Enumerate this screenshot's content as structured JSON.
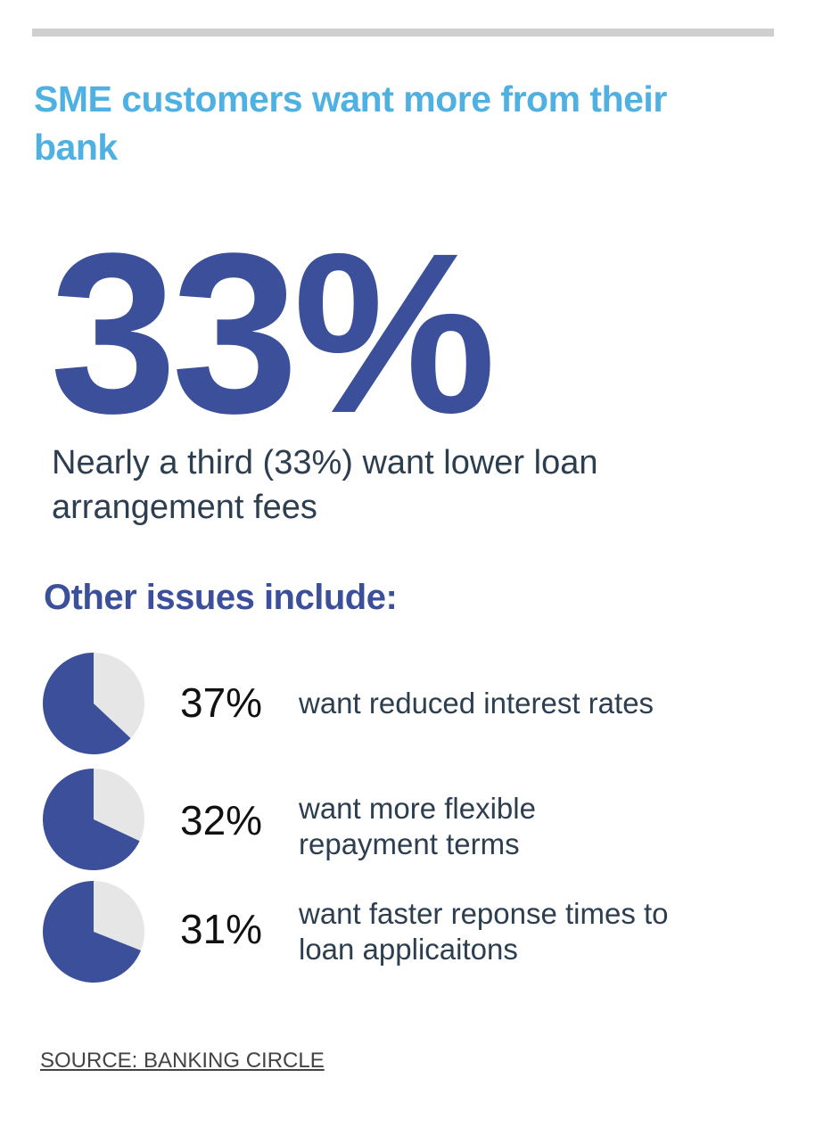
{
  "title": "SME customers want more from their bank",
  "headline": {
    "value": "33%",
    "text": "Nearly a third (33%) want lower loan arrangement fees"
  },
  "subheading": "Other issues include:",
  "colors": {
    "primary": "#3b4f9b",
    "accent": "#4fb1e2",
    "pie_rest": "#e6e6e6",
    "text": "#2c3e50"
  },
  "chart_data": {
    "type": "pie",
    "series": [
      {
        "label": "37%",
        "value": 37,
        "description": "want reduced interest rates"
      },
      {
        "label": "32%",
        "value": 32,
        "description": "want more flexible repayment terms"
      },
      {
        "label": "31%",
        "value": 31,
        "description": "want faster reponse times to loan applicaitons"
      }
    ]
  },
  "source": "SOURCE: BANKING CIRCLE"
}
